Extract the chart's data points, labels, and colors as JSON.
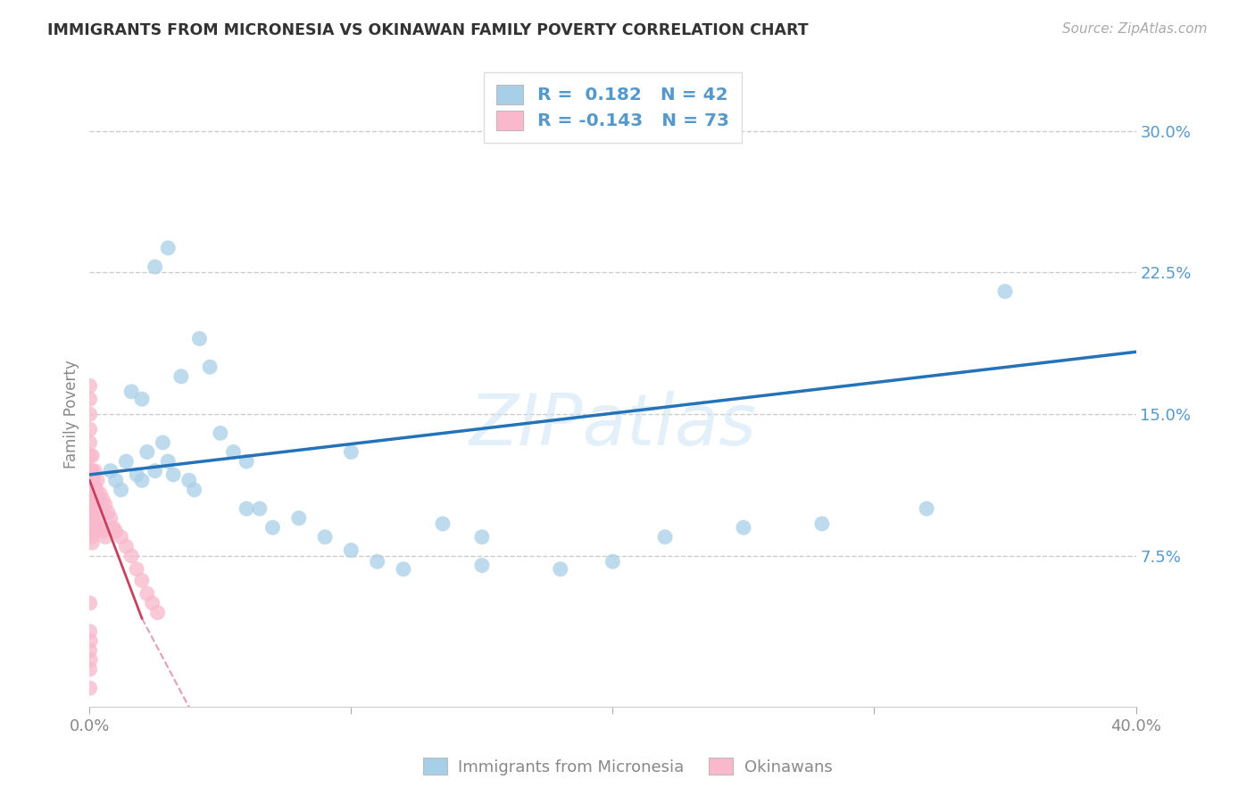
{
  "title": "IMMIGRANTS FROM MICRONESIA VS OKINAWAN FAMILY POVERTY CORRELATION CHART",
  "source": "Source: ZipAtlas.com",
  "ylabel": "Family Poverty",
  "xlim": [
    0.0,
    0.4
  ],
  "ylim": [
    -0.005,
    0.305
  ],
  "yticks": [
    0.075,
    0.15,
    0.225,
    0.3
  ],
  "ytick_labels": [
    "7.5%",
    "15.0%",
    "22.5%",
    "30.0%"
  ],
  "xticks": [
    0.0,
    0.1,
    0.2,
    0.3,
    0.4
  ],
  "xtick_labels": [
    "0.0%",
    "",
    "",
    "",
    "40.0%"
  ],
  "color_blue_scatter": "#a8cfe8",
  "color_pink_scatter": "#f9b8cc",
  "color_blue_line": "#2472b8",
  "color_pink_line": "#c84060",
  "color_text_right": "#5599cc",
  "color_grid": "#cccccc",
  "color_axis": "#cccccc",
  "label_blue": "Immigrants from Micronesia",
  "label_pink": "Okinawans",
  "legend_line1": "R =  0.182   N = 42",
  "legend_line2": "R = -0.143   N = 73",
  "mic_x": [
    0.008,
    0.01,
    0.012,
    0.014,
    0.018,
    0.02,
    0.022,
    0.025,
    0.028,
    0.03,
    0.032,
    0.035,
    0.038,
    0.042,
    0.046,
    0.05,
    0.055,
    0.06,
    0.065,
    0.07,
    0.08,
    0.09,
    0.1,
    0.11,
    0.12,
    0.135,
    0.15,
    0.18,
    0.2,
    0.22,
    0.25,
    0.28,
    0.32,
    0.35,
    0.025,
    0.03,
    0.016,
    0.02,
    0.04,
    0.06,
    0.1,
    0.15
  ],
  "mic_y": [
    0.12,
    0.115,
    0.11,
    0.125,
    0.118,
    0.115,
    0.13,
    0.12,
    0.135,
    0.125,
    0.118,
    0.17,
    0.115,
    0.19,
    0.175,
    0.14,
    0.13,
    0.125,
    0.1,
    0.09,
    0.095,
    0.085,
    0.078,
    0.072,
    0.068,
    0.092,
    0.07,
    0.068,
    0.072,
    0.085,
    0.09,
    0.092,
    0.1,
    0.215,
    0.228,
    0.238,
    0.162,
    0.158,
    0.11,
    0.1,
    0.13,
    0.085
  ],
  "oki_x": [
    0.0002,
    0.0002,
    0.0002,
    0.0002,
    0.0002,
    0.0004,
    0.0004,
    0.0004,
    0.0004,
    0.0004,
    0.0006,
    0.0006,
    0.0006,
    0.0006,
    0.0008,
    0.0008,
    0.0008,
    0.0008,
    0.001,
    0.001,
    0.001,
    0.001,
    0.001,
    0.001,
    0.0012,
    0.0012,
    0.0012,
    0.0015,
    0.0015,
    0.0015,
    0.002,
    0.002,
    0.002,
    0.002,
    0.0025,
    0.0025,
    0.003,
    0.003,
    0.003,
    0.004,
    0.004,
    0.005,
    0.005,
    0.006,
    0.006,
    0.007,
    0.008,
    0.009,
    0.01,
    0.012,
    0.014,
    0.016,
    0.018,
    0.02,
    0.022,
    0.024,
    0.026,
    0.0001,
    0.0001,
    0.0001,
    0.0001,
    0.0001,
    0.0001,
    0.0001,
    0.0001,
    0.0001,
    0.0001,
    0.0001,
    0.0001,
    0.0001,
    0.0003,
    0.0003
  ],
  "oki_y": [
    0.118,
    0.112,
    0.108,
    0.102,
    0.096,
    0.12,
    0.114,
    0.108,
    0.1,
    0.09,
    0.118,
    0.11,
    0.1,
    0.088,
    0.115,
    0.108,
    0.098,
    0.085,
    0.128,
    0.12,
    0.112,
    0.105,
    0.095,
    0.082,
    0.118,
    0.108,
    0.095,
    0.115,
    0.105,
    0.09,
    0.12,
    0.112,
    0.1,
    0.088,
    0.11,
    0.095,
    0.115,
    0.105,
    0.09,
    0.108,
    0.09,
    0.105,
    0.088,
    0.102,
    0.085,
    0.098,
    0.095,
    0.09,
    0.088,
    0.085,
    0.08,
    0.075,
    0.068,
    0.062,
    0.055,
    0.05,
    0.045,
    0.165,
    0.158,
    0.15,
    0.142,
    0.135,
    0.128,
    0.12,
    0.112,
    0.05,
    0.035,
    0.025,
    0.015,
    0.005,
    0.03,
    0.02
  ]
}
